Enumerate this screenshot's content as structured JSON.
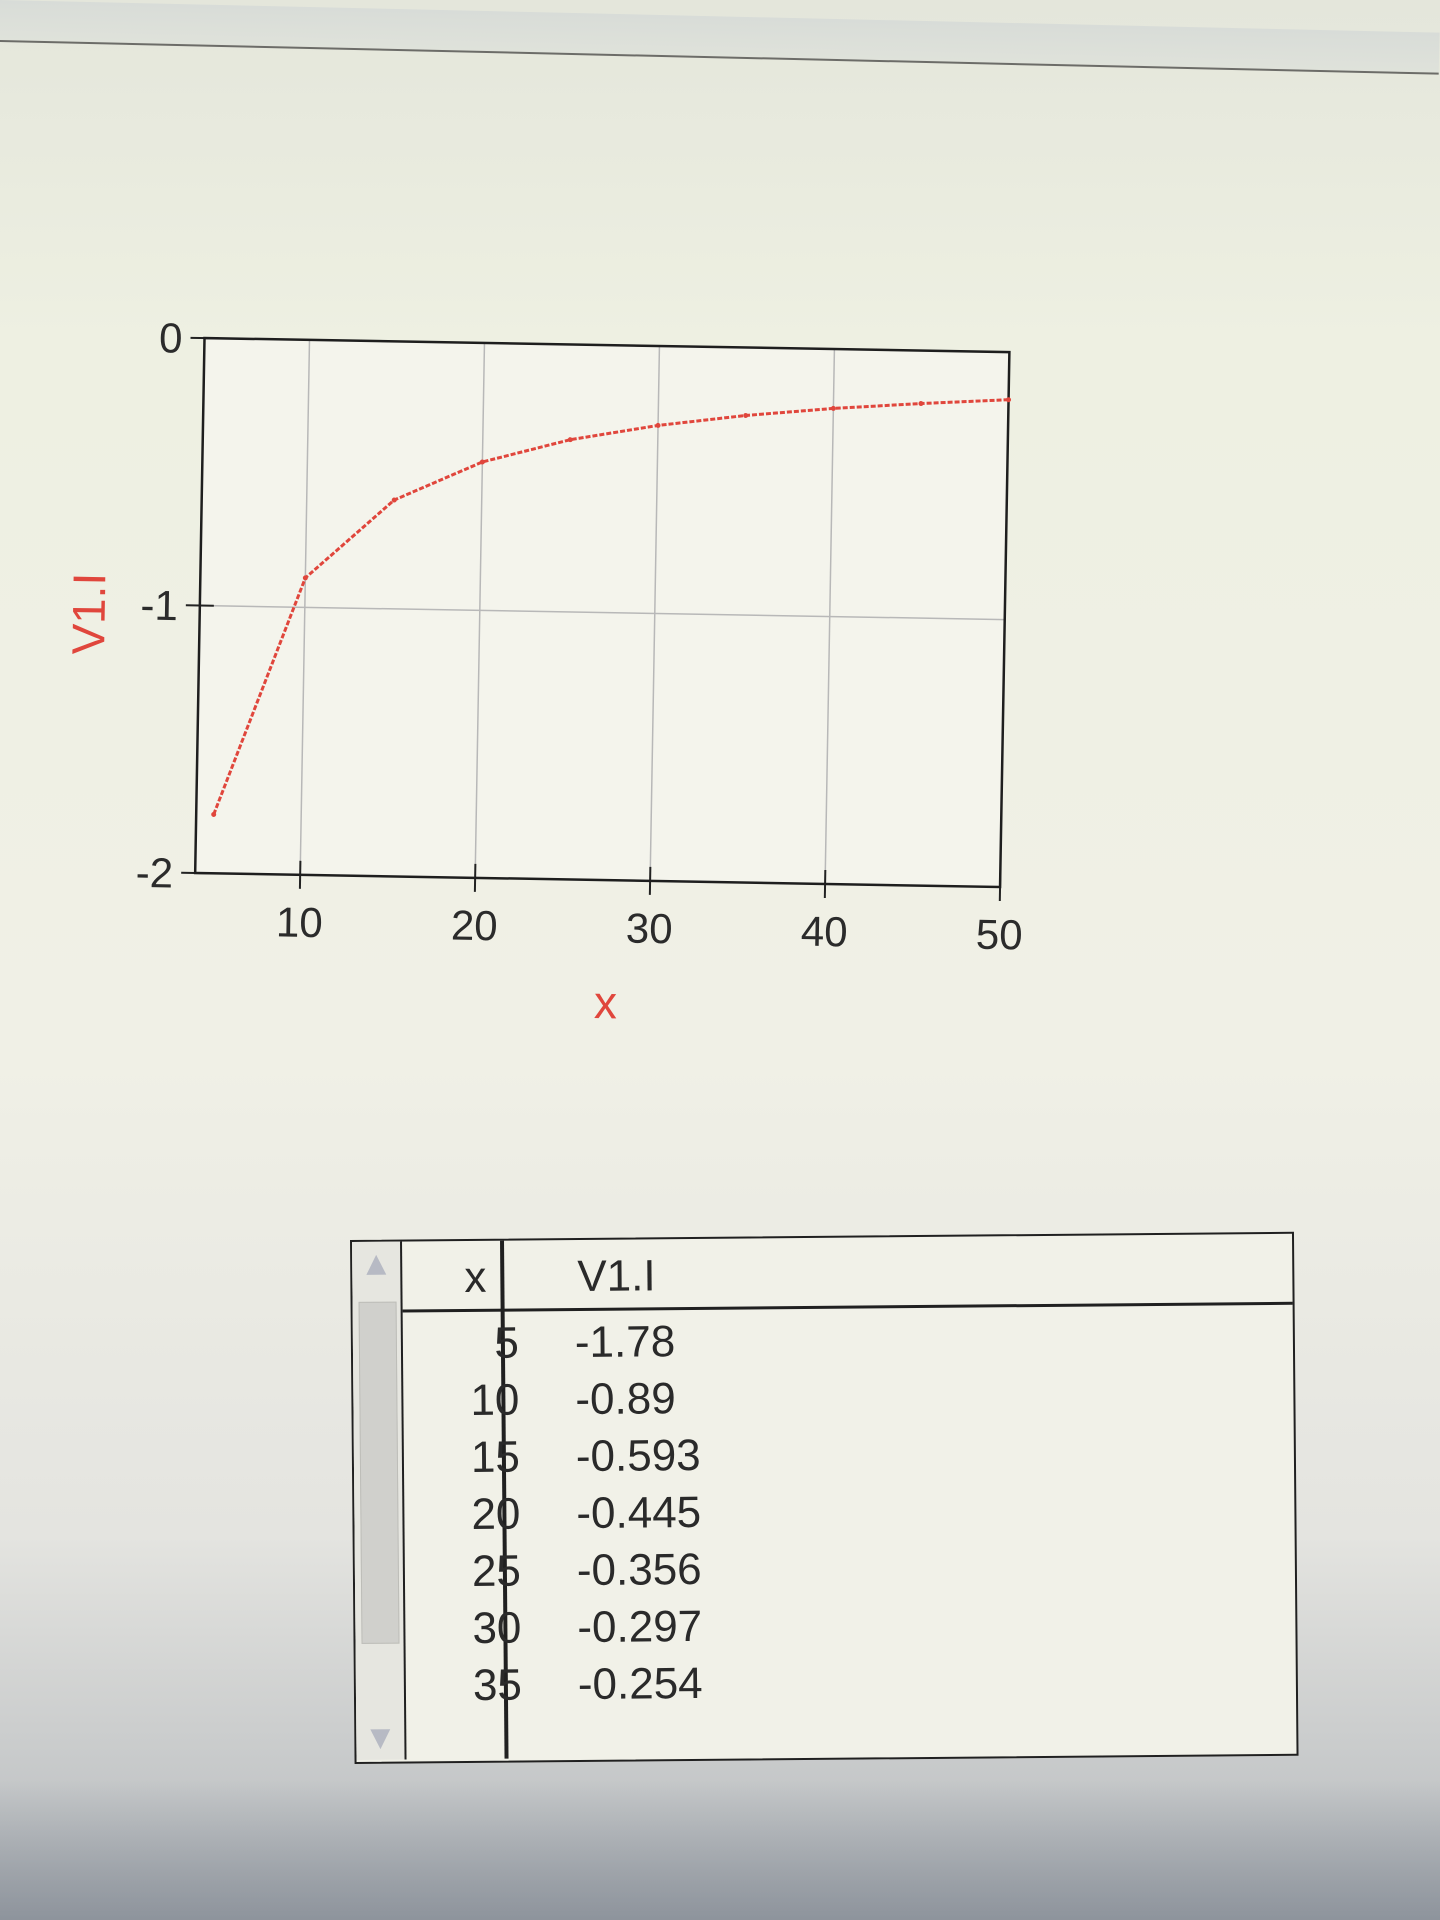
{
  "chart_data": {
    "type": "line",
    "xlabel": "x",
    "ylabel": "V1.I",
    "xlim": [
      4,
      50
    ],
    "ylim": [
      -2,
      0
    ],
    "xticks": [
      "10",
      "20",
      "30",
      "40",
      "50"
    ],
    "yticks": [
      "0",
      "-1",
      "-2"
    ],
    "grid": true,
    "series": [
      {
        "color": "#e0463c",
        "x": [
          5,
          10,
          15,
          20,
          25,
          30,
          35,
          40,
          45,
          50
        ],
        "y": [
          -1.78,
          -0.89,
          -0.593,
          -0.445,
          -0.356,
          -0.297,
          -0.254,
          -0.222,
          -0.198,
          -0.178
        ]
      }
    ]
  },
  "table": {
    "headers": [
      "x",
      "V1.I"
    ],
    "rows": [
      [
        "5",
        "-1.78"
      ],
      [
        "10",
        "-0.89"
      ],
      [
        "15",
        "-0.593"
      ],
      [
        "20",
        "-0.445"
      ],
      [
        "25",
        "-0.356"
      ],
      [
        "30",
        "-0.297"
      ],
      [
        "35",
        "-0.254"
      ]
    ]
  },
  "icons": {
    "scroll_up": "triangle-up-icon",
    "scroll_down": "triangle-down-icon"
  }
}
